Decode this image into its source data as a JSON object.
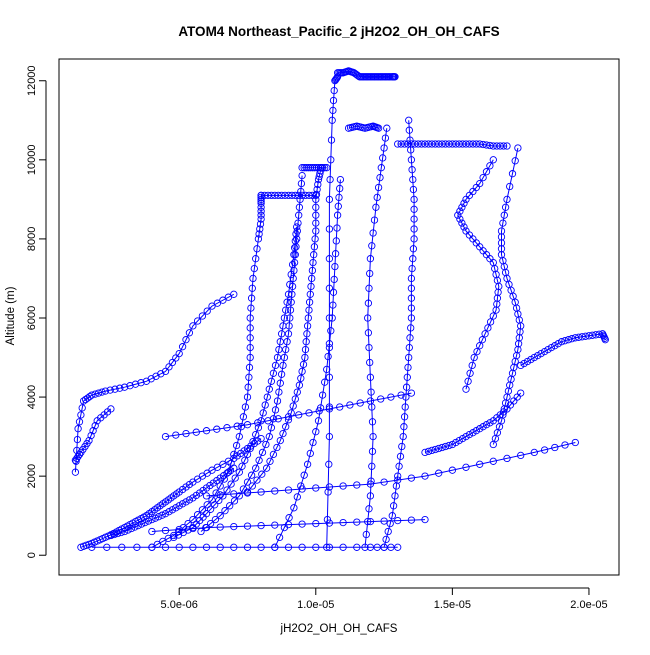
{
  "chart_data": {
    "type": "scatter",
    "title": "ATOM4 Northeast_Pacific_2 jH2O2_OH_OH_CAFS",
    "xlabel": "jH2O2_OH_OH_CAFS",
    "ylabel": "Altitude (m)",
    "xlim": [
      6e-07,
      2.11e-05
    ],
    "ylim": [
      -500,
      12550
    ],
    "x_ticks": [
      5e-06,
      1e-05,
      1.5e-05,
      2e-05
    ],
    "x_tick_labels": [
      "5.0e-06",
      "1.0e-05",
      "1.5e-05",
      "2.0e-05"
    ],
    "y_ticks": [
      0,
      2000,
      4000,
      6000,
      8000,
      10000,
      12000
    ],
    "y_tick_labels": [
      "0",
      "2000",
      "4000",
      "6000",
      "8000",
      "10000",
      "12000"
    ],
    "grid": false,
    "legend": "none",
    "color": "#0000ff",
    "marker": "open-circle",
    "series": [
      {
        "x": [
          1.2e-06,
          1.3e-06,
          1.5e-06,
          1.8e-06,
          2.3e-06,
          3e-06,
          3.8e-06,
          4.5e-06,
          5e-06,
          5.5e-06,
          6.2e-06,
          7e-06
        ],
        "y": [
          2100,
          3200,
          3900,
          4050,
          4150,
          4250,
          4400,
          4650,
          5100,
          5800,
          6300,
          6600
        ]
      },
      {
        "x": [
          1.2e-06,
          1.4e-06,
          1.7e-06,
          2e-06,
          2.5e-06
        ],
        "y": [
          2400,
          2600,
          2900,
          3400,
          3700
        ]
      },
      {
        "x": [
          1.4e-06,
          1.8e-06,
          2.2e-06,
          2.6e-06,
          3e-06,
          3.4e-06,
          3.8e-06,
          4.2e-06,
          4.6e-06,
          5e-06,
          5.5e-06,
          6.2e-06,
          7e-06,
          7.5e-06,
          8e-06
        ],
        "y": [
          200,
          300,
          420,
          550,
          700,
          850,
          1000,
          1200,
          1400,
          1600,
          1850,
          2150,
          2450,
          2700,
          2950
        ]
      },
      {
        "x": [
          2.5e-06,
          3e-06,
          3.5e-06,
          4e-06,
          4.5e-06,
          5e-06,
          5.5e-06,
          6e-06,
          6.5e-06,
          7e-06
        ],
        "y": [
          500,
          600,
          750,
          900,
          1050,
          1250,
          1450,
          1700,
          1950,
          2200
        ]
      },
      {
        "x": [
          4e-06,
          4.8e-06,
          5.5e-06,
          6.2e-06,
          6.8e-06,
          7.2e-06,
          7.5e-06,
          7.6e-06,
          7.6e-06,
          7.7e-06,
          7.9e-06,
          8e-06,
          8e-06,
          8e-06
        ],
        "y": [
          200,
          500,
          900,
          1400,
          2100,
          3000,
          4000,
          5000,
          6000,
          7000,
          8000,
          8500,
          8900,
          9100
        ]
      },
      {
        "x": [
          8e-06,
          8.5e-06,
          9e-06,
          9.5e-06,
          1e-05
        ],
        "y": [
          9100,
          9100,
          9100,
          9100,
          9100
        ]
      },
      {
        "x": [
          4.8e-06,
          5.5e-06,
          6e-06,
          6.6e-06,
          7.2e-06,
          7.6e-06,
          8e-06,
          8.3e-06,
          8.6e-06,
          8.8e-06,
          9e-06,
          9.2e-06,
          9.3e-06
        ],
        "y": [
          450,
          700,
          1050,
          1500,
          2100,
          2700,
          3400,
          4200,
          5000,
          5800,
          6600,
          7600,
          8300
        ]
      },
      {
        "x": [
          5.8e-06,
          6.5e-06,
          7.2e-06,
          7.8e-06,
          8.3e-06,
          8.6e-06,
          8.8e-06,
          9e-06,
          9.1e-06,
          9.2e-06,
          9.3e-06,
          9.4e-06,
          9.5e-06
        ],
        "y": [
          600,
          1000,
          1500,
          2200,
          3000,
          3900,
          4800,
          5600,
          6400,
          7200,
          8000,
          8800,
          9600
        ]
      },
      {
        "x": [
          9.5e-06,
          9.8e-06,
          1.01e-05,
          1.04e-05
        ],
        "y": [
          9800,
          9800,
          9800,
          9800
        ]
      },
      {
        "x": [
          7.5e-06,
          8.2e-06,
          8.7e-06,
          9.1e-06,
          9.4e-06,
          9.6e-06,
          9.7e-06,
          9.8e-06,
          9.9e-06,
          1e-05,
          1e-05,
          1.01e-05,
          1.02e-05
        ],
        "y": [
          1600,
          2200,
          2900,
          3600,
          4300,
          5000,
          5800,
          6600,
          7400,
          8200,
          9000,
          9500,
          9800
        ]
      },
      {
        "x": [
          8.5e-06,
          9.2e-06,
          9.7e-06,
          1.01e-05,
          1.04e-05,
          1.06e-05,
          1.07e-05,
          1.08e-05,
          1.09e-05
        ],
        "y": [
          200,
          1200,
          2300,
          3400,
          4700,
          6000,
          7300,
          8600,
          9500
        ]
      },
      {
        "x": [
          1.04e-05,
          1.05e-05,
          1.05e-05,
          1.05e-05,
          1.06e-05,
          1.07e-05,
          1.08e-05
        ],
        "y": [
          200,
          3000,
          6000,
          9000,
          11000,
          12000,
          12100
        ]
      },
      {
        "x": [
          1.08e-05,
          1.1e-05,
          1.12e-05,
          1.14e-05,
          1.16e-05,
          1.18e-05,
          1.2e-05,
          1.22e-05,
          1.24e-05,
          1.26e-05,
          1.28e-05,
          1.29e-05
        ],
        "y": [
          12200,
          12200,
          12250,
          12200,
          12100,
          12100,
          12100,
          12100,
          12100,
          12100,
          12100,
          12100
        ]
      },
      {
        "x": [
          1.12e-05,
          1.15e-05,
          1.18e-05,
          1.21e-05,
          1.23e-05
        ],
        "y": [
          10800,
          10850,
          10800,
          10850,
          10800
        ]
      },
      {
        "x": [
          1.18e-05,
          1.2e-05,
          1.21e-05,
          1.2e-05,
          1.19e-05,
          1.2e-05,
          1.22e-05,
          1.24e-05,
          1.26e-05
        ],
        "y": [
          200,
          1500,
          3000,
          4500,
          6000,
          7500,
          8800,
          9800,
          10800
        ]
      },
      {
        "x": [
          1.25e-05,
          1.28e-05,
          1.3e-05,
          1.32e-05,
          1.33e-05,
          1.34e-05,
          1.35e-05,
          1.35e-05,
          1.36e-05,
          1.36e-05,
          1.35e-05,
          1.34e-05
        ],
        "y": [
          200,
          1000,
          2000,
          3000,
          4000,
          5000,
          6000,
          7000,
          8000,
          9000,
          10000,
          11000
        ]
      },
      {
        "x": [
          1.3e-05,
          1.35e-05,
          1.4e-05,
          1.45e-05,
          1.5e-05,
          1.55e-05,
          1.6e-05,
          1.65e-05,
          1.7e-05
        ],
        "y": [
          10400,
          10400,
          10400,
          10400,
          10400,
          10400,
          10400,
          10350,
          10350
        ]
      },
      {
        "x": [
          1.55e-05,
          1.58e-05,
          1.62e-05,
          1.66e-05,
          1.67e-05,
          1.65e-05,
          1.6e-05,
          1.55e-05,
          1.52e-05,
          1.55e-05,
          1.6e-05,
          1.65e-05
        ],
        "y": [
          4200,
          5000,
          5600,
          6200,
          6800,
          7400,
          7800,
          8200,
          8600,
          9000,
          9400,
          10000
        ]
      },
      {
        "x": [
          1.65e-05,
          1.68e-05,
          1.7e-05,
          1.72e-05,
          1.74e-05,
          1.75e-05,
          1.73e-05,
          1.7e-05,
          1.68e-05,
          1.68e-05,
          1.7e-05,
          1.74e-05
        ],
        "y": [
          2800,
          3400,
          4000,
          4600,
          5200,
          5800,
          6400,
          7000,
          7600,
          8200,
          9000,
          10300
        ]
      },
      {
        "x": [
          1.75e-05,
          1.8e-05,
          1.85e-05,
          1.9e-05,
          1.95e-05,
          2e-05,
          2.05e-05,
          2.06e-05
        ],
        "y": [
          4800,
          5000,
          5200,
          5400,
          5500,
          5550,
          5600,
          5450
        ]
      },
      {
        "x": [
          1.4e-05,
          1.45e-05,
          1.5e-05,
          1.55e-05,
          1.6e-05,
          1.65e-05,
          1.7e-05,
          1.75e-05
        ],
        "y": [
          2600,
          2700,
          2800,
          3000,
          3200,
          3400,
          3700,
          4100
        ]
      },
      {
        "x": [
          1.8e-06,
          4e-06,
          6e-06,
          8e-06,
          1e-05,
          1.2e-05,
          1.3e-05
        ],
        "y": [
          200,
          200,
          200,
          200,
          200,
          200,
          200
        ]
      },
      {
        "x": [
          4e-06,
          6e-06,
          8e-06,
          1e-05,
          1.2e-05,
          1.4e-05
        ],
        "y": [
          600,
          700,
          750,
          800,
          850,
          900
        ]
      },
      {
        "x": [
          6e-06,
          8e-06,
          1e-05,
          1.2e-05,
          1.4e-05,
          1.6e-05,
          1.8e-05,
          1.95e-05
        ],
        "y": [
          1500,
          1600,
          1700,
          1800,
          2000,
          2300,
          2600,
          2850
        ]
      },
      {
        "x": [
          4.5e-06,
          6e-06,
          7.5e-06,
          9e-06,
          1.05e-05,
          1.2e-05,
          1.35e-05
        ],
        "y": [
          3000,
          3150,
          3300,
          3500,
          3700,
          3900,
          4100
        ]
      }
    ]
  }
}
